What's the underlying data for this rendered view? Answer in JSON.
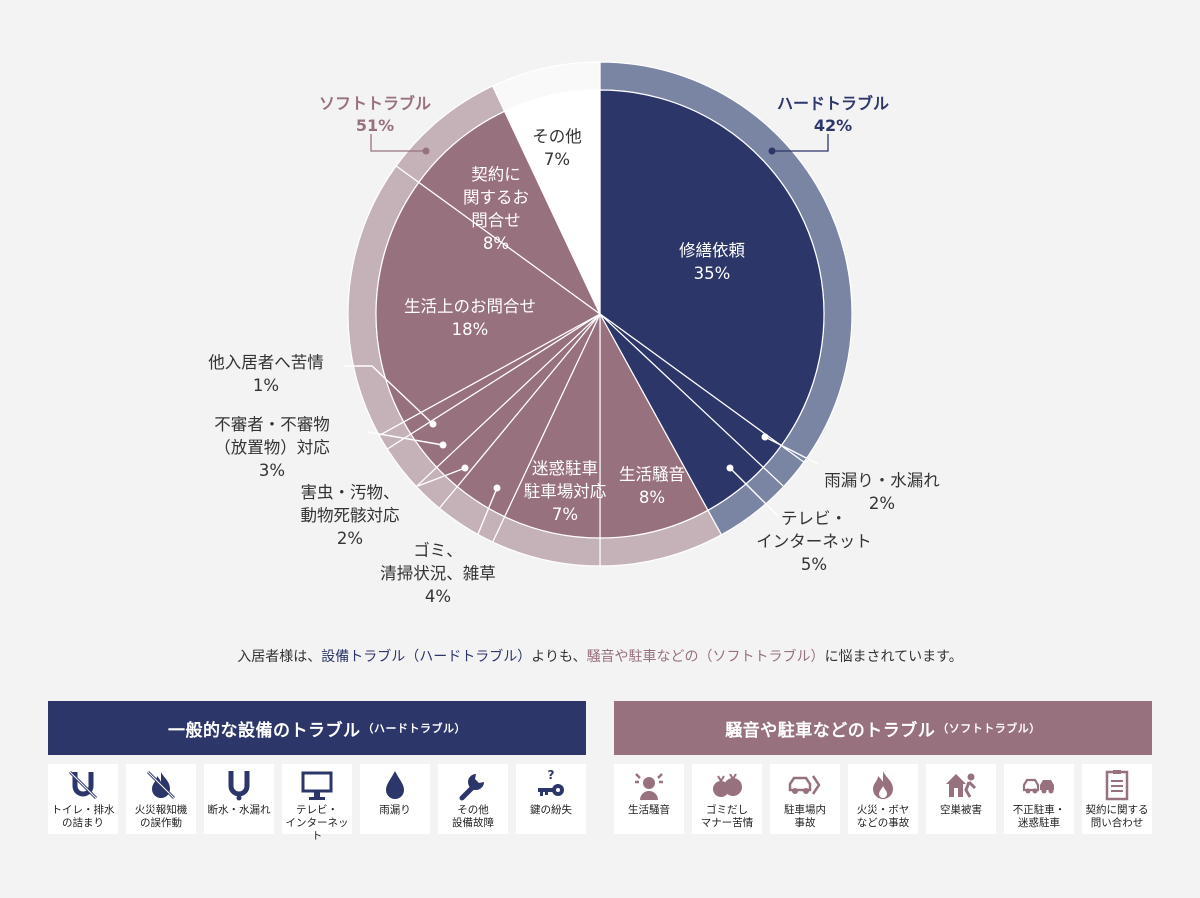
{
  "chart_data": {
    "type": "pie",
    "title": "",
    "groups": [
      {
        "name": "ハードトラブル",
        "percent": "42%",
        "color": "#7a84a3"
      },
      {
        "name": "ソフトトラブル",
        "percent": "51%",
        "color": "#c5b1b8"
      }
    ],
    "slices": [
      {
        "label": "修繕依頼",
        "percent_text": "35%",
        "value": 35,
        "group": "hard"
      },
      {
        "label": "雨漏り・水漏れ",
        "percent_text": "2%",
        "value": 2,
        "group": "hard"
      },
      {
        "label": "テレビ・\nインターネット",
        "percent_text": "5%",
        "value": 5,
        "group": "hard"
      },
      {
        "label": "生活騒音",
        "percent_text": "8%",
        "value": 8,
        "group": "soft"
      },
      {
        "label": "迷惑駐車\n駐車場対応",
        "percent_text": "7%",
        "value": 7,
        "group": "soft"
      },
      {
        "label": "ゴミ、\n清掃状況、雑草",
        "percent_text": "4%",
        "value": 4,
        "group": "soft"
      },
      {
        "label": "害虫・汚物、\n動物死骸対応",
        "percent_text": "2%",
        "value": 2,
        "group": "soft"
      },
      {
        "label": "不審者・不審物\n（放置物）対応",
        "percent_text": "3%",
        "value": 3,
        "group": "soft"
      },
      {
        "label": "他入居者へ苦情",
        "percent_text": "1%",
        "value": 1,
        "group": "soft"
      },
      {
        "label": "生活上のお問合せ",
        "percent_text": "18%",
        "value": 18,
        "group": "soft"
      },
      {
        "label": "契約に\n関するお\n問合せ",
        "percent_text": "8%",
        "value": 8,
        "group": "soft"
      },
      {
        "label": "その他",
        "percent_text": "7%",
        "value": 7,
        "group": "other"
      }
    ],
    "colors": {
      "hard_inner": "#2d3669",
      "hard_ring": "#7a84a3",
      "soft_inner": "#98717f",
      "soft_ring": "#c5b1b8",
      "other_inner": "#ffffff",
      "other_ring": "#f9f9f9",
      "hard_text": "#2d3669",
      "soft_text": "#98717f"
    }
  },
  "caption": {
    "part1": "入居者様は、",
    "part2": "設備トラブル（ハードトラブル）",
    "part3": "よりも、",
    "part4": "騒音や駐車などの（ソフトトラブル）",
    "part5": "に悩まされています。"
  },
  "hard_panel": {
    "title": "一般的な設備のトラブル",
    "subtitle": "（ハードトラブル）",
    "items": [
      {
        "icon": "pipe-clog-icon",
        "label": "トイレ・排水\nの詰まり"
      },
      {
        "icon": "fire-alarm-icon",
        "label": "火災報知機\nの誤作動"
      },
      {
        "icon": "pipe-icon",
        "label": "断水・水漏れ"
      },
      {
        "icon": "tv-icon",
        "label": "テレビ・\nインターネット"
      },
      {
        "icon": "water-drop-icon",
        "label": "雨漏り"
      },
      {
        "icon": "wrench-icon",
        "label": "その他\n設備故障"
      },
      {
        "icon": "lost-key-icon",
        "label": "鍵の紛失"
      }
    ]
  },
  "soft_panel": {
    "title": "騒音や駐車などのトラブル",
    "subtitle": "（ソフトトラブル）",
    "items": [
      {
        "icon": "noise-icon",
        "label": "生活騒音"
      },
      {
        "icon": "garbage-bag-icon",
        "label": "ゴミだし\nマナー苦情"
      },
      {
        "icon": "car-icon",
        "label": "駐車場内\n事故"
      },
      {
        "icon": "fire-icon",
        "label": "火災・ボヤ\nなどの事故"
      },
      {
        "icon": "burglar-icon",
        "label": "空巣被害"
      },
      {
        "icon": "parking-icon",
        "label": "不正駐車・\n迷惑駐車"
      },
      {
        "icon": "contract-icon",
        "label": "契約に関する\n問い合わせ"
      }
    ]
  }
}
